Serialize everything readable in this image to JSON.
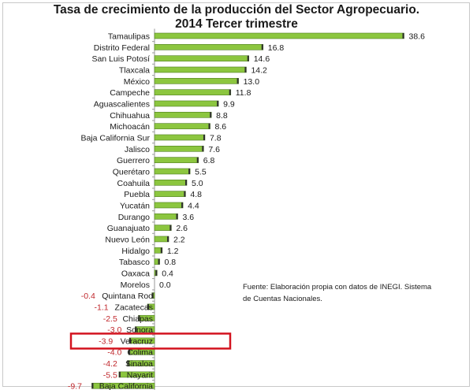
{
  "chart_data": {
    "type": "bar",
    "orientation": "horizontal",
    "title": "Tasa de crecimiento de la producción del Sector Agropecuario.",
    "subtitle": "2014 Tercer trimestre",
    "source": "Fuente: Elaboración propia con datos de  INEGI. Sistema de Cuentas Nacionales.",
    "highlighted_category": "Veracruz",
    "colors": {
      "bar": "#8cc63f",
      "bar_edge": "#4e7d1e",
      "positive_label": "#1a1a1a",
      "negative_label": "#c0282d",
      "highlight_box": "#d3131f"
    },
    "categories": [
      "Tamaulipas",
      "Distrito Federal",
      "San Luis Potosí",
      "Tlaxcala",
      "México",
      "Campeche",
      "Aguascalientes",
      "Chihuahua",
      "Michoacán",
      "Baja California Sur",
      "Jalisco",
      "Guerrero",
      "Querétaro",
      "Coahuila",
      "Puebla",
      "Yucatán",
      "Durango",
      "Guanajuato",
      "Nuevo León",
      "Hidalgo",
      "Tabasco",
      "Oaxaca",
      "Morelos",
      "Quintana Roo",
      "Zacatecas",
      "Chiapas",
      "Sonora",
      "Veracruz",
      "Colima",
      "Sinaloa",
      "Nayarit",
      "Baja California"
    ],
    "values": [
      38.6,
      16.8,
      14.6,
      14.2,
      13.0,
      11.8,
      9.9,
      8.8,
      8.6,
      7.8,
      7.6,
      6.8,
      5.5,
      5.0,
      4.8,
      4.4,
      3.6,
      2.6,
      2.2,
      1.2,
      0.8,
      0.4,
      0.0,
      -0.4,
      -1.1,
      -2.5,
      -3.0,
      -3.9,
      -4.0,
      -4.2,
      -5.5,
      -9.7
    ],
    "value_labels": [
      "38.6",
      "16.8",
      "14.6",
      "14.2",
      "13.0",
      "11.8",
      "9.9",
      "8.8",
      "8.6",
      "7.8",
      "7.6",
      "6.8",
      "5.5",
      "5.0",
      "4.8",
      "4.4",
      "3.6",
      "2.6",
      "2.2",
      "1.2",
      "0.8",
      "0.4",
      "0.0",
      "-0.4",
      "-1.1",
      "-2.5",
      "-3.0",
      "-3.9",
      "-4.0",
      "-4.2",
      "-5.5",
      "-9.7"
    ],
    "grid": false,
    "legend": "none"
  }
}
